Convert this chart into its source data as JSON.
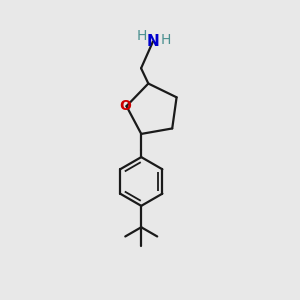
{
  "bg_color": "#e8e8e8",
  "bond_color": "#1a1a1a",
  "o_color": "#cc0000",
  "n_color": "#0000cc",
  "h_color": "#4a9090",
  "line_width": 1.6,
  "fig_size": [
    3.0,
    3.0
  ],
  "dpi": 100,
  "xlim": [
    0,
    10
  ],
  "ylim": [
    0,
    10
  ]
}
